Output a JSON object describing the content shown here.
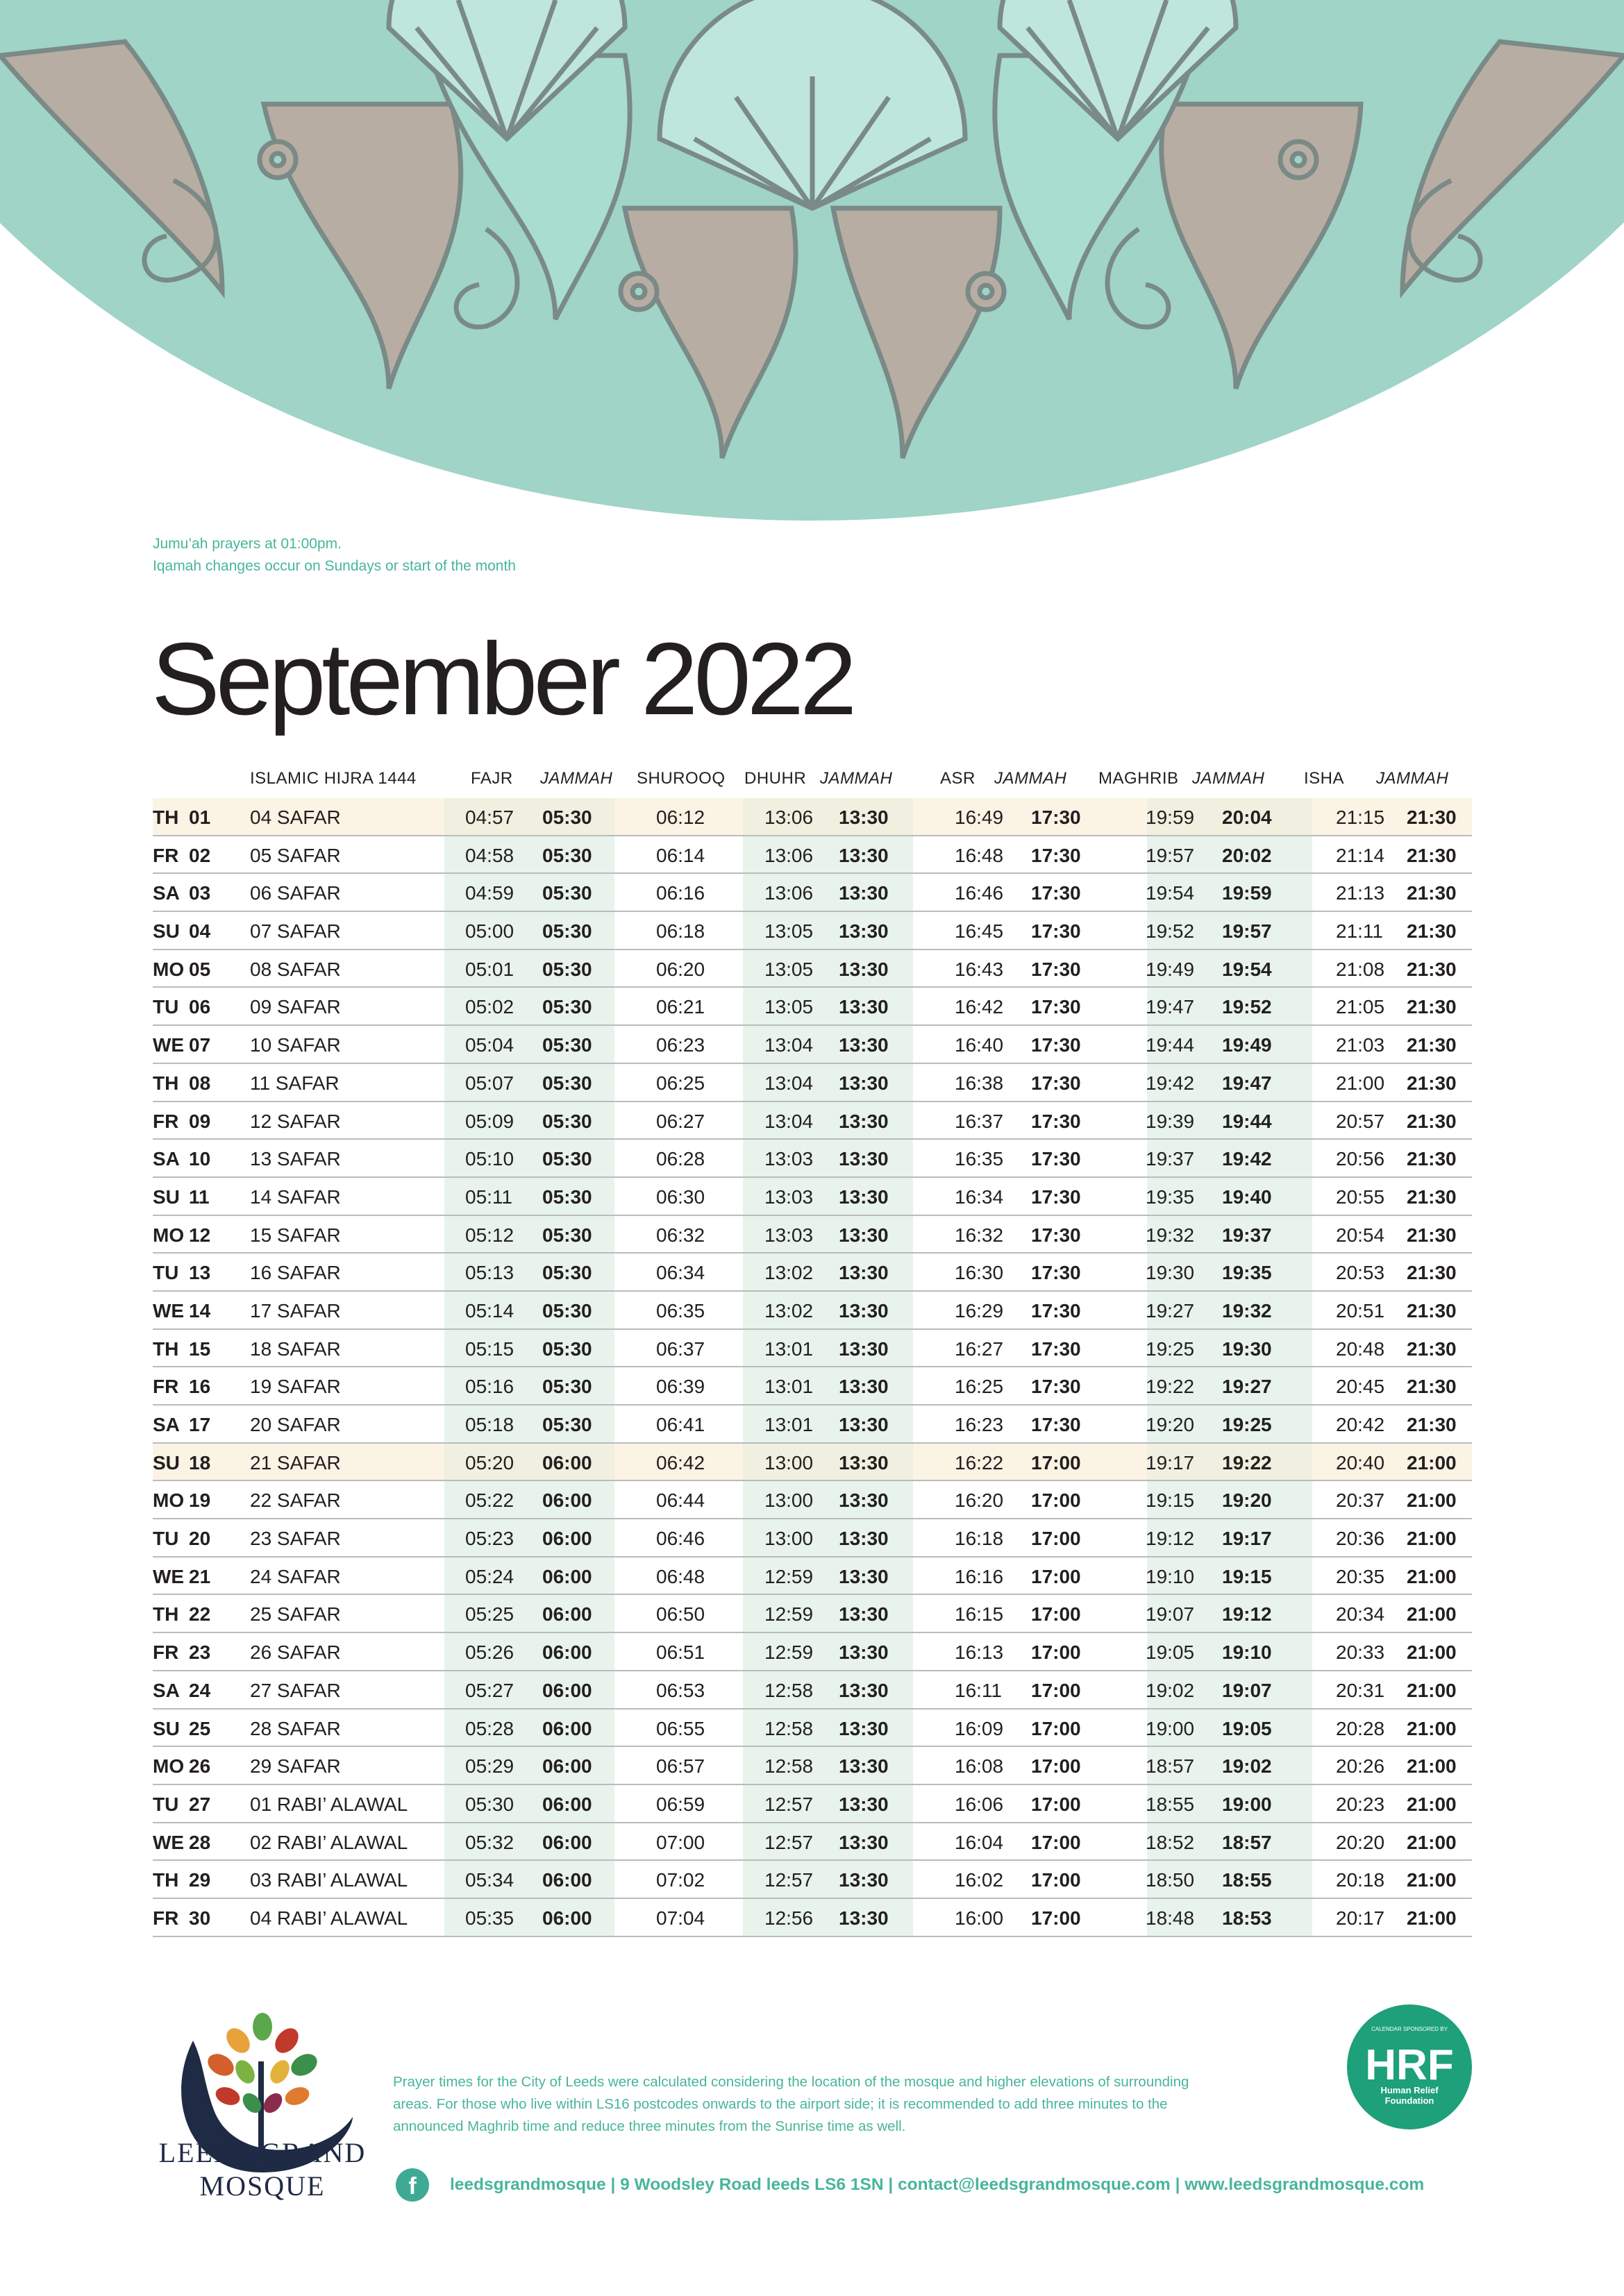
{
  "notes": {
    "line1": "Jumu’ah prayers at 01:00pm.",
    "line2": "Iqamah changes occur on Sundays or start of the month"
  },
  "title": "September 2022",
  "headers": {
    "hijri": "ISLAMIC HIJRA 1444",
    "fajr": "FAJR",
    "fajr_j": "JAMMAH",
    "shurooq": "SHUROOQ",
    "dhuhr": "DHUHR",
    "dhuhr_j": "JAMMAH",
    "asr": "ASR",
    "asr_j": "JAMMAH",
    "maghrib": "MAGHRIB",
    "maghrib_j": "JAMMAH",
    "isha": "ISHA",
    "isha_j": "JAMMAH"
  },
  "rows": [
    {
      "dow": "TH",
      "day": "01",
      "hijri": "04 SAFAR",
      "fajr": "04:57",
      "fajr_j": "05:30",
      "shurooq": "06:12",
      "dhuhr": "13:06",
      "dhuhr_j": "13:30",
      "asr": "16:49",
      "asr_j": "17:30",
      "maghrib": "19:59",
      "maghrib_j": "20:04",
      "isha": "21:15",
      "isha_j": "21:30",
      "highlight": true
    },
    {
      "dow": "FR",
      "day": "02",
      "hijri": "05 SAFAR",
      "fajr": "04:58",
      "fajr_j": "05:30",
      "shurooq": "06:14",
      "dhuhr": "13:06",
      "dhuhr_j": "13:30",
      "asr": "16:48",
      "asr_j": "17:30",
      "maghrib": "19:57",
      "maghrib_j": "20:02",
      "isha": "21:14",
      "isha_j": "21:30",
      "highlight": false
    },
    {
      "dow": "SA",
      "day": "03",
      "hijri": "06 SAFAR",
      "fajr": "04:59",
      "fajr_j": "05:30",
      "shurooq": "06:16",
      "dhuhr": "13:06",
      "dhuhr_j": "13:30",
      "asr": "16:46",
      "asr_j": "17:30",
      "maghrib": "19:54",
      "maghrib_j": "19:59",
      "isha": "21:13",
      "isha_j": "21:30",
      "highlight": false
    },
    {
      "dow": "SU",
      "day": "04",
      "hijri": "07 SAFAR",
      "fajr": "05:00",
      "fajr_j": "05:30",
      "shurooq": "06:18",
      "dhuhr": "13:05",
      "dhuhr_j": "13:30",
      "asr": "16:45",
      "asr_j": "17:30",
      "maghrib": "19:52",
      "maghrib_j": "19:57",
      "isha": "21:11",
      "isha_j": "21:30",
      "highlight": false
    },
    {
      "dow": "MO",
      "day": "05",
      "hijri": "08 SAFAR",
      "fajr": "05:01",
      "fajr_j": "05:30",
      "shurooq": "06:20",
      "dhuhr": "13:05",
      "dhuhr_j": "13:30",
      "asr": "16:43",
      "asr_j": "17:30",
      "maghrib": "19:49",
      "maghrib_j": "19:54",
      "isha": "21:08",
      "isha_j": "21:30",
      "highlight": false
    },
    {
      "dow": "TU",
      "day": "06",
      "hijri": "09 SAFAR",
      "fajr": "05:02",
      "fajr_j": "05:30",
      "shurooq": "06:21",
      "dhuhr": "13:05",
      "dhuhr_j": "13:30",
      "asr": "16:42",
      "asr_j": "17:30",
      "maghrib": "19:47",
      "maghrib_j": "19:52",
      "isha": "21:05",
      "isha_j": "21:30",
      "highlight": false
    },
    {
      "dow": "WE",
      "day": "07",
      "hijri": "10 SAFAR",
      "fajr": "05:04",
      "fajr_j": "05:30",
      "shurooq": "06:23",
      "dhuhr": "13:04",
      "dhuhr_j": "13:30",
      "asr": "16:40",
      "asr_j": "17:30",
      "maghrib": "19:44",
      "maghrib_j": "19:49",
      "isha": "21:03",
      "isha_j": "21:30",
      "highlight": false
    },
    {
      "dow": "TH",
      "day": "08",
      "hijri": "11 SAFAR",
      "fajr": "05:07",
      "fajr_j": "05:30",
      "shurooq": "06:25",
      "dhuhr": "13:04",
      "dhuhr_j": "13:30",
      "asr": "16:38",
      "asr_j": "17:30",
      "maghrib": "19:42",
      "maghrib_j": "19:47",
      "isha": "21:00",
      "isha_j": "21:30",
      "highlight": false
    },
    {
      "dow": "FR",
      "day": "09",
      "hijri": "12 SAFAR",
      "fajr": "05:09",
      "fajr_j": "05:30",
      "shurooq": "06:27",
      "dhuhr": "13:04",
      "dhuhr_j": "13:30",
      "asr": "16:37",
      "asr_j": "17:30",
      "maghrib": "19:39",
      "maghrib_j": "19:44",
      "isha": "20:57",
      "isha_j": "21:30",
      "highlight": false
    },
    {
      "dow": "SA",
      "day": "10",
      "hijri": "13 SAFAR",
      "fajr": "05:10",
      "fajr_j": "05:30",
      "shurooq": "06:28",
      "dhuhr": "13:03",
      "dhuhr_j": "13:30",
      "asr": "16:35",
      "asr_j": "17:30",
      "maghrib": "19:37",
      "maghrib_j": "19:42",
      "isha": "20:56",
      "isha_j": "21:30",
      "highlight": false
    },
    {
      "dow": "SU",
      "day": "11",
      "hijri": "14 SAFAR",
      "fajr": "05:11",
      "fajr_j": "05:30",
      "shurooq": "06:30",
      "dhuhr": "13:03",
      "dhuhr_j": "13:30",
      "asr": "16:34",
      "asr_j": "17:30",
      "maghrib": "19:35",
      "maghrib_j": "19:40",
      "isha": "20:55",
      "isha_j": "21:30",
      "highlight": false
    },
    {
      "dow": "MO",
      "day": "12",
      "hijri": "15 SAFAR",
      "fajr": "05:12",
      "fajr_j": "05:30",
      "shurooq": "06:32",
      "dhuhr": "13:03",
      "dhuhr_j": "13:30",
      "asr": "16:32",
      "asr_j": "17:30",
      "maghrib": "19:32",
      "maghrib_j": "19:37",
      "isha": "20:54",
      "isha_j": "21:30",
      "highlight": false
    },
    {
      "dow": "TU",
      "day": "13",
      "hijri": "16 SAFAR",
      "fajr": "05:13",
      "fajr_j": "05:30",
      "shurooq": "06:34",
      "dhuhr": "13:02",
      "dhuhr_j": "13:30",
      "asr": "16:30",
      "asr_j": "17:30",
      "maghrib": "19:30",
      "maghrib_j": "19:35",
      "isha": "20:53",
      "isha_j": "21:30",
      "highlight": false
    },
    {
      "dow": "WE",
      "day": "14",
      "hijri": "17 SAFAR",
      "fajr": "05:14",
      "fajr_j": "05:30",
      "shurooq": "06:35",
      "dhuhr": "13:02",
      "dhuhr_j": "13:30",
      "asr": "16:29",
      "asr_j": "17:30",
      "maghrib": "19:27",
      "maghrib_j": "19:32",
      "isha": "20:51",
      "isha_j": "21:30",
      "highlight": false
    },
    {
      "dow": "TH",
      "day": "15",
      "hijri": "18 SAFAR",
      "fajr": "05:15",
      "fajr_j": "05:30",
      "shurooq": "06:37",
      "dhuhr": "13:01",
      "dhuhr_j": "13:30",
      "asr": "16:27",
      "asr_j": "17:30",
      "maghrib": "19:25",
      "maghrib_j": "19:30",
      "isha": "20:48",
      "isha_j": "21:30",
      "highlight": false
    },
    {
      "dow": "FR",
      "day": "16",
      "hijri": "19 SAFAR",
      "fajr": "05:16",
      "fajr_j": "05:30",
      "shurooq": "06:39",
      "dhuhr": "13:01",
      "dhuhr_j": "13:30",
      "asr": "16:25",
      "asr_j": "17:30",
      "maghrib": "19:22",
      "maghrib_j": "19:27",
      "isha": "20:45",
      "isha_j": "21:30",
      "highlight": false
    },
    {
      "dow": "SA",
      "day": "17",
      "hijri": "20 SAFAR",
      "fajr": "05:18",
      "fajr_j": "05:30",
      "shurooq": "06:41",
      "dhuhr": "13:01",
      "dhuhr_j": "13:30",
      "asr": "16:23",
      "asr_j": "17:30",
      "maghrib": "19:20",
      "maghrib_j": "19:25",
      "isha": "20:42",
      "isha_j": "21:30",
      "highlight": false
    },
    {
      "dow": "SU",
      "day": "18",
      "hijri": "21 SAFAR",
      "fajr": "05:20",
      "fajr_j": "06:00",
      "shurooq": "06:42",
      "dhuhr": "13:00",
      "dhuhr_j": "13:30",
      "asr": "16:22",
      "asr_j": "17:00",
      "maghrib": "19:17",
      "maghrib_j": "19:22",
      "isha": "20:40",
      "isha_j": "21:00",
      "highlight": true
    },
    {
      "dow": "MO",
      "day": "19",
      "hijri": "22 SAFAR",
      "fajr": "05:22",
      "fajr_j": "06:00",
      "shurooq": "06:44",
      "dhuhr": "13:00",
      "dhuhr_j": "13:30",
      "asr": "16:20",
      "asr_j": "17:00",
      "maghrib": "19:15",
      "maghrib_j": "19:20",
      "isha": "20:37",
      "isha_j": "21:00",
      "highlight": false
    },
    {
      "dow": "TU",
      "day": "20",
      "hijri": "23 SAFAR",
      "fajr": "05:23",
      "fajr_j": "06:00",
      "shurooq": "06:46",
      "dhuhr": "13:00",
      "dhuhr_j": "13:30",
      "asr": "16:18",
      "asr_j": "17:00",
      "maghrib": "19:12",
      "maghrib_j": "19:17",
      "isha": "20:36",
      "isha_j": "21:00",
      "highlight": false
    },
    {
      "dow": "WE",
      "day": "21",
      "hijri": "24 SAFAR",
      "fajr": "05:24",
      "fajr_j": "06:00",
      "shurooq": "06:48",
      "dhuhr": "12:59",
      "dhuhr_j": "13:30",
      "asr": "16:16",
      "asr_j": "17:00",
      "maghrib": "19:10",
      "maghrib_j": "19:15",
      "isha": "20:35",
      "isha_j": "21:00",
      "highlight": false
    },
    {
      "dow": "TH",
      "day": "22",
      "hijri": "25 SAFAR",
      "fajr": "05:25",
      "fajr_j": "06:00",
      "shurooq": "06:50",
      "dhuhr": "12:59",
      "dhuhr_j": "13:30",
      "asr": "16:15",
      "asr_j": "17:00",
      "maghrib": "19:07",
      "maghrib_j": "19:12",
      "isha": "20:34",
      "isha_j": "21:00",
      "highlight": false
    },
    {
      "dow": "FR",
      "day": "23",
      "hijri": "26 SAFAR",
      "fajr": "05:26",
      "fajr_j": "06:00",
      "shurooq": "06:51",
      "dhuhr": "12:59",
      "dhuhr_j": "13:30",
      "asr": "16:13",
      "asr_j": "17:00",
      "maghrib": "19:05",
      "maghrib_j": "19:10",
      "isha": "20:33",
      "isha_j": "21:00",
      "highlight": false
    },
    {
      "dow": "SA",
      "day": "24",
      "hijri": "27 SAFAR",
      "fajr": "05:27",
      "fajr_j": "06:00",
      "shurooq": "06:53",
      "dhuhr": "12:58",
      "dhuhr_j": "13:30",
      "asr": "16:11",
      "asr_j": "17:00",
      "maghrib": "19:02",
      "maghrib_j": "19:07",
      "isha": "20:31",
      "isha_j": "21:00",
      "highlight": false
    },
    {
      "dow": "SU",
      "day": "25",
      "hijri": "28 SAFAR",
      "fajr": "05:28",
      "fajr_j": "06:00",
      "shurooq": "06:55",
      "dhuhr": "12:58",
      "dhuhr_j": "13:30",
      "asr": "16:09",
      "asr_j": "17:00",
      "maghrib": "19:00",
      "maghrib_j": "19:05",
      "isha": "20:28",
      "isha_j": "21:00",
      "highlight": false
    },
    {
      "dow": "MO",
      "day": "26",
      "hijri": "29 SAFAR",
      "fajr": "05:29",
      "fajr_j": "06:00",
      "shurooq": "06:57",
      "dhuhr": "12:58",
      "dhuhr_j": "13:30",
      "asr": "16:08",
      "asr_j": "17:00",
      "maghrib": "18:57",
      "maghrib_j": "19:02",
      "isha": "20:26",
      "isha_j": "21:00",
      "highlight": false
    },
    {
      "dow": "TU",
      "day": "27",
      "hijri": "01 RABI’ ALAWAL",
      "fajr": "05:30",
      "fajr_j": "06:00",
      "shurooq": "06:59",
      "dhuhr": "12:57",
      "dhuhr_j": "13:30",
      "asr": "16:06",
      "asr_j": "17:00",
      "maghrib": "18:55",
      "maghrib_j": "19:00",
      "isha": "20:23",
      "isha_j": "21:00",
      "highlight": false
    },
    {
      "dow": "WE",
      "day": "28",
      "hijri": "02 RABI’ ALAWAL",
      "fajr": "05:32",
      "fajr_j": "06:00",
      "shurooq": "07:00",
      "dhuhr": "12:57",
      "dhuhr_j": "13:30",
      "asr": "16:04",
      "asr_j": "17:00",
      "maghrib": "18:52",
      "maghrib_j": "18:57",
      "isha": "20:20",
      "isha_j": "21:00",
      "highlight": false
    },
    {
      "dow": "TH",
      "day": "29",
      "hijri": "03 RABI’ ALAWAL",
      "fajr": "05:34",
      "fajr_j": "06:00",
      "shurooq": "07:02",
      "dhuhr": "12:57",
      "dhuhr_j": "13:30",
      "asr": "16:02",
      "asr_j": "17:00",
      "maghrib": "18:50",
      "maghrib_j": "18:55",
      "isha": "20:18",
      "isha_j": "21:00",
      "highlight": false
    },
    {
      "dow": "FR",
      "day": "30",
      "hijri": "04 RABI’ ALAWAL",
      "fajr": "05:35",
      "fajr_j": "06:00",
      "shurooq": "07:04",
      "dhuhr": "12:56",
      "dhuhr_j": "13:30",
      "asr": "16:00",
      "asr_j": "17:00",
      "maghrib": "18:48",
      "maghrib_j": "18:53",
      "isha": "20:17",
      "isha_j": "21:00",
      "highlight": false
    }
  ],
  "footer": {
    "disclaimer": "Prayer times for the City of Leeds were calculated considering the location of the mosque and  higher elevations of surrounding areas. For those who live within LS16 postcodes onwards to the airport side; it is recommended to add three minutes to the announced Maghrib time and reduce three minutes from the Sunrise time as well.",
    "contact": "leedsgrandmosque  |  9 Woodsley Road leeds LS6 1SN  |  contact@leedsgrandmosque.com  |  www.leedsgrandmosque.com",
    "facebook_icon_glyph": "f"
  },
  "logo": {
    "line1": "LEEDS GRAND",
    "line2": "MOSQUE"
  },
  "sponsor": {
    "top": "CALENDAR SPONSORED BY",
    "mark": "HRF",
    "name1": "Human Relief",
    "name2": "Foundation",
    "color": "#1ea07a"
  },
  "colors": {
    "banner_teal": "#9fd4c7",
    "banner_taupe": "#b8ada3",
    "accent_green": "#48b59c",
    "highlight_row": "#fbf3e4",
    "band": "#e8f3ec"
  }
}
